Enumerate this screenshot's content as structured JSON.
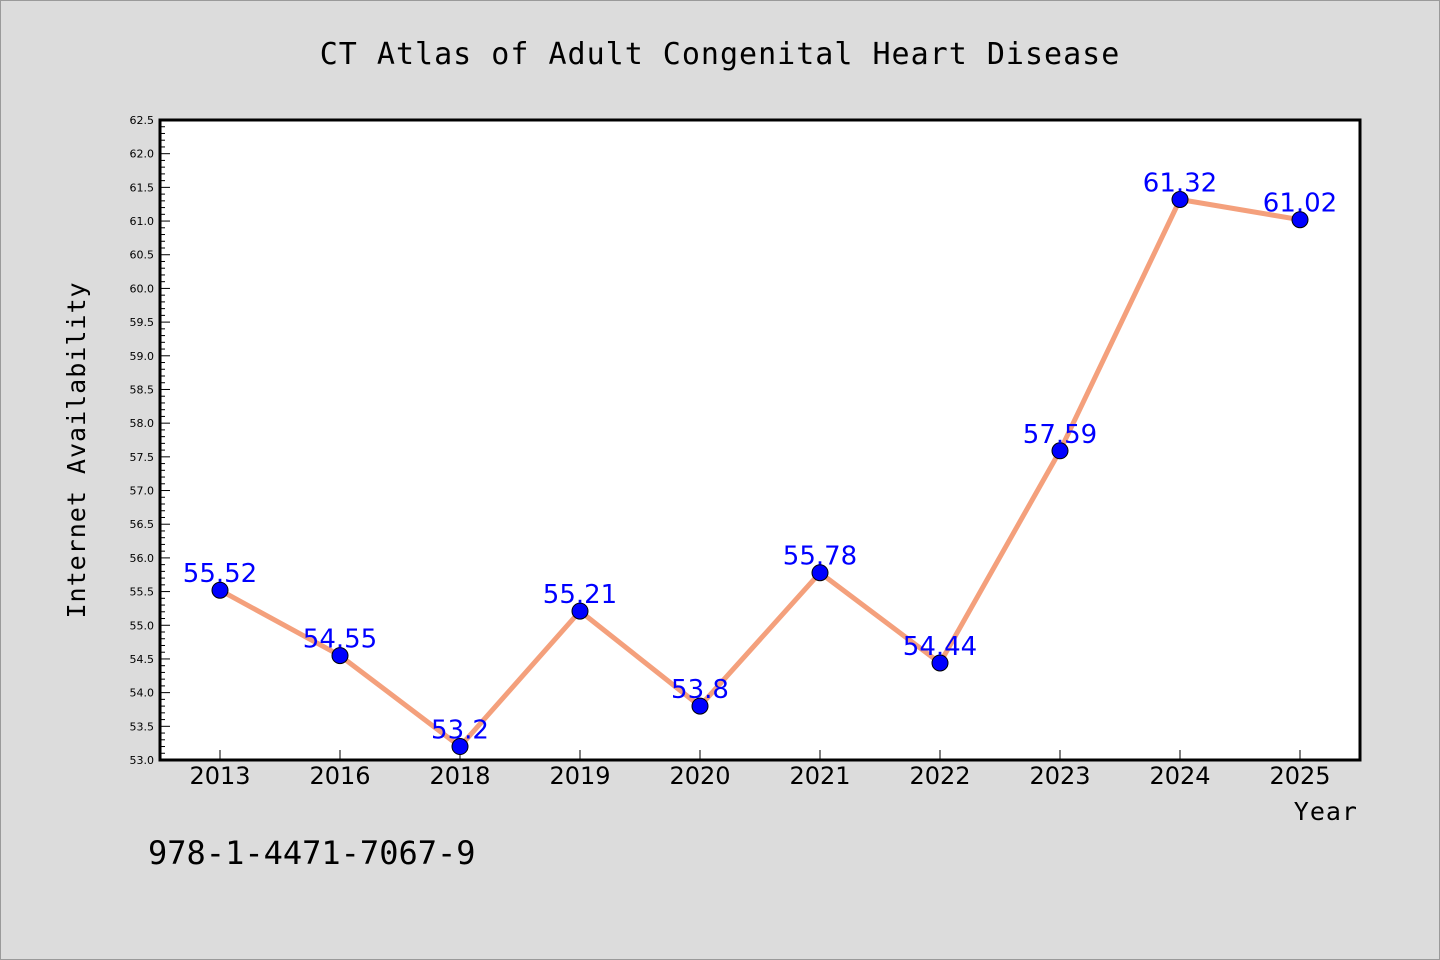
{
  "chart_data": {
    "type": "line",
    "title": "CT Atlas of Adult Congenital Heart Disease",
    "xlabel": "Year",
    "ylabel": "Internet Availability",
    "categories": [
      "2013",
      "2016",
      "2018",
      "2019",
      "2020",
      "2021",
      "2022",
      "2023",
      "2024",
      "2025"
    ],
    "series": [
      {
        "values": [
          55.52,
          54.55,
          53.2,
          55.21,
          53.8,
          55.78,
          54.44,
          57.59,
          61.32,
          61.02
        ],
        "data_labels": [
          "55.52",
          "54.55",
          "53.2",
          "55.21",
          "53.8",
          "55.78",
          "54.44",
          "57.59",
          "61.32",
          "61.02"
        ]
      }
    ],
    "ylim": [
      53.0,
      62.5
    ],
    "yticks": [
      "53.0",
      "53.5",
      "54.0",
      "54.5",
      "55.0",
      "55.5",
      "56.0",
      "56.5",
      "57.0",
      "57.5",
      "58.0",
      "58.5",
      "59.0",
      "59.5",
      "60.0",
      "60.5",
      "61.0",
      "61.5",
      "62.0",
      "62.5"
    ],
    "line_color": "#f4a07c",
    "marker_color": "#0000ff",
    "label_color": "#0000ff",
    "grid": false
  },
  "footer": {
    "isbn": "978-1-4471-7067-9"
  }
}
